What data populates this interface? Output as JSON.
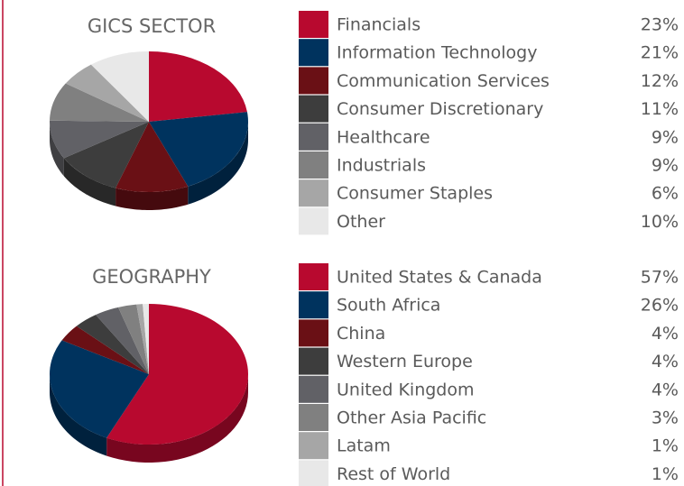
{
  "chart_data": [
    {
      "type": "pie",
      "title": "GICS SECTOR",
      "categories": [
        "Financials",
        "Information Technology",
        "Communication Services",
        "Consumer Discretionary",
        "Healthcare",
        "Industrials",
        "Consumer Staples",
        "Other"
      ],
      "values": [
        23,
        21,
        12,
        11,
        9,
        9,
        6,
        10
      ],
      "value_labels": [
        "23%",
        "21%",
        "12%",
        "11%",
        "9%",
        "9%",
        "6%",
        "10%"
      ],
      "colors": [
        "#b8092f",
        "#00335e",
        "#6a1015",
        "#3d3d3d",
        "#616166",
        "#808080",
        "#a6a6a6",
        "#e8e8e8"
      ]
    },
    {
      "type": "pie",
      "title": "GEOGRAPHY",
      "categories": [
        "United States & Canada",
        "South Africa",
        "China",
        "Western Europe",
        "United Kingdom",
        "Other Asia Pacific",
        "Latam",
        "Rest of World"
      ],
      "values": [
        57,
        26,
        4,
        4,
        4,
        3,
        1,
        1
      ],
      "value_labels": [
        "57%",
        "26%",
        "4%",
        "4%",
        "4%",
        "3%",
        "1%",
        "1%"
      ],
      "colors": [
        "#b8092f",
        "#00335e",
        "#6a1015",
        "#3d3d3d",
        "#616166",
        "#808080",
        "#a6a6a6",
        "#e8e8e8"
      ]
    }
  ]
}
